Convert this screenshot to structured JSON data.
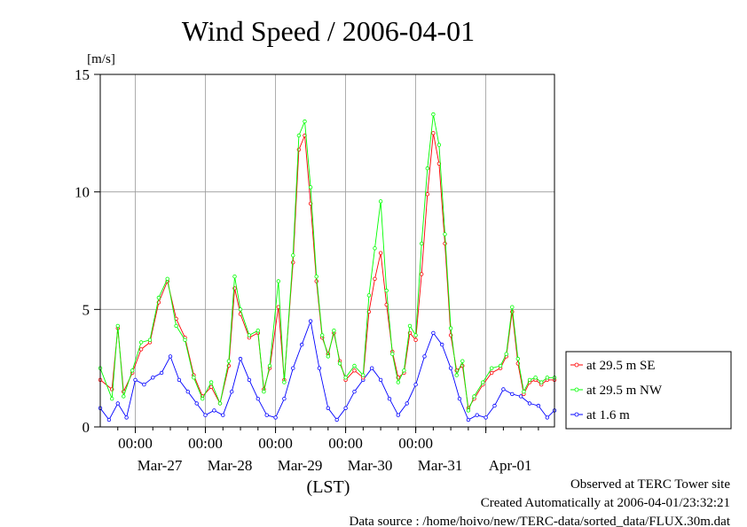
{
  "chart_data": {
    "type": "line",
    "title": "Wind Speed / 2006-04-01",
    "ylabel": "[m/s]",
    "xlabel": "(LST)",
    "ylim": [
      0,
      15
    ],
    "yticks": [
      "0",
      "5",
      "10",
      "15"
    ],
    "xlim": [
      "2006-03-26T12:00",
      "2006-04-01T23:30"
    ],
    "x_tick_time_labels": [
      "00:00",
      "00:00",
      "00:00",
      "00:00",
      "00:00"
    ],
    "x_date_labels": [
      "Mar-27",
      "Mar-28",
      "Mar-29",
      "Mar-30",
      "Mar-31",
      "Apr-01"
    ],
    "grid": true,
    "legend_position": "right",
    "series": [
      {
        "name": "at 29.5 m SE",
        "color": "#ff0000",
        "points": [
          [
            "2006-03-26T12:00",
            2.0
          ],
          [
            "2006-03-26T16:00",
            1.6
          ],
          [
            "2006-03-26T18:00",
            4.2
          ],
          [
            "2006-03-26T20:00",
            1.5
          ],
          [
            "2006-03-26T23:00",
            2.3
          ],
          [
            "2006-03-27T02:00",
            3.3
          ],
          [
            "2006-03-27T05:00",
            3.6
          ],
          [
            "2006-03-27T08:00",
            5.3
          ],
          [
            "2006-03-27T11:00",
            6.2
          ],
          [
            "2006-03-27T14:00",
            4.6
          ],
          [
            "2006-03-27T17:00",
            3.8
          ],
          [
            "2006-03-27T20:00",
            2.2
          ],
          [
            "2006-03-27T23:00",
            1.3
          ],
          [
            "2006-03-28T02:00",
            1.7
          ],
          [
            "2006-03-28T05:00",
            1.0
          ],
          [
            "2006-03-28T08:00",
            2.6
          ],
          [
            "2006-03-28T10:00",
            5.9
          ],
          [
            "2006-03-28T12:00",
            4.8
          ],
          [
            "2006-03-28T15:00",
            3.8
          ],
          [
            "2006-03-28T18:00",
            4.0
          ],
          [
            "2006-03-28T20:00",
            1.6
          ],
          [
            "2006-03-28T22:00",
            2.5
          ],
          [
            "2006-03-29T01:00",
            5.1
          ],
          [
            "2006-03-29T03:00",
            2.0
          ],
          [
            "2006-03-29T06:00",
            7.0
          ],
          [
            "2006-03-29T08:00",
            11.8
          ],
          [
            "2006-03-29T10:00",
            12.4
          ],
          [
            "2006-03-29T12:00",
            9.5
          ],
          [
            "2006-03-29T14:00",
            6.2
          ],
          [
            "2006-03-29T16:00",
            3.8
          ],
          [
            "2006-03-29T18:00",
            3.1
          ],
          [
            "2006-03-29T20:00",
            4.0
          ],
          [
            "2006-03-29T22:00",
            2.8
          ],
          [
            "2006-03-30T00:00",
            2.0
          ],
          [
            "2006-03-30T03:00",
            2.4
          ],
          [
            "2006-03-30T06:00",
            2.1
          ],
          [
            "2006-03-30T08:00",
            4.9
          ],
          [
            "2006-03-30T10:00",
            6.3
          ],
          [
            "2006-03-30T12:00",
            7.4
          ],
          [
            "2006-03-30T14:00",
            5.2
          ],
          [
            "2006-03-30T16:00",
            3.2
          ],
          [
            "2006-03-30T18:00",
            2.1
          ],
          [
            "2006-03-30T20:00",
            2.3
          ],
          [
            "2006-03-30T22:00",
            4.0
          ],
          [
            "2006-03-31T00:00",
            3.7
          ],
          [
            "2006-03-31T02:00",
            6.5
          ],
          [
            "2006-03-31T04:00",
            9.9
          ],
          [
            "2006-03-31T06:00",
            12.5
          ],
          [
            "2006-03-31T08:00",
            11.2
          ],
          [
            "2006-03-31T10:00",
            7.8
          ],
          [
            "2006-03-31T12:00",
            3.9
          ],
          [
            "2006-03-31T14:00",
            2.4
          ],
          [
            "2006-03-31T16:00",
            2.6
          ],
          [
            "2006-03-31T18:00",
            0.8
          ],
          [
            "2006-03-31T20:00",
            1.2
          ],
          [
            "2006-03-31T23:00",
            1.8
          ],
          [
            "2006-04-01T02:00",
            2.3
          ],
          [
            "2006-04-01T05:00",
            2.5
          ],
          [
            "2006-04-01T07:00",
            3.0
          ],
          [
            "2006-04-01T09:00",
            4.9
          ],
          [
            "2006-04-01T11:00",
            2.7
          ],
          [
            "2006-04-01T13:00",
            1.4
          ],
          [
            "2006-04-01T15:00",
            1.9
          ],
          [
            "2006-04-01T17:00",
            2.0
          ],
          [
            "2006-04-01T19:00",
            1.8
          ],
          [
            "2006-04-01T21:00",
            2.0
          ],
          [
            "2006-04-01T23:30",
            2.0
          ]
        ]
      },
      {
        "name": "at 29.5 m NW",
        "color": "#00ff00",
        "points": [
          [
            "2006-03-26T12:00",
            2.5
          ],
          [
            "2006-03-26T16:00",
            1.2
          ],
          [
            "2006-03-26T18:00",
            4.3
          ],
          [
            "2006-03-26T20:00",
            1.3
          ],
          [
            "2006-03-26T23:00",
            2.4
          ],
          [
            "2006-03-27T02:00",
            3.6
          ],
          [
            "2006-03-27T05:00",
            3.7
          ],
          [
            "2006-03-27T08:00",
            5.5
          ],
          [
            "2006-03-27T11:00",
            6.3
          ],
          [
            "2006-03-27T14:00",
            4.3
          ],
          [
            "2006-03-27T17:00",
            3.7
          ],
          [
            "2006-03-27T20:00",
            2.1
          ],
          [
            "2006-03-27T23:00",
            1.2
          ],
          [
            "2006-03-28T02:00",
            1.9
          ],
          [
            "2006-03-28T05:00",
            1.0
          ],
          [
            "2006-03-28T08:00",
            2.8
          ],
          [
            "2006-03-28T10:00",
            6.4
          ],
          [
            "2006-03-28T12:00",
            5.0
          ],
          [
            "2006-03-28T15:00",
            3.9
          ],
          [
            "2006-03-28T18:00",
            4.1
          ],
          [
            "2006-03-28T20:00",
            1.5
          ],
          [
            "2006-03-28T22:00",
            2.6
          ],
          [
            "2006-03-29T01:00",
            6.2
          ],
          [
            "2006-03-29T03:00",
            1.9
          ],
          [
            "2006-03-29T06:00",
            7.3
          ],
          [
            "2006-03-29T08:00",
            12.4
          ],
          [
            "2006-03-29T10:00",
            13.0
          ],
          [
            "2006-03-29T12:00",
            10.2
          ],
          [
            "2006-03-29T14:00",
            6.4
          ],
          [
            "2006-03-29T16:00",
            3.9
          ],
          [
            "2006-03-29T18:00",
            3.0
          ],
          [
            "2006-03-29T20:00",
            4.1
          ],
          [
            "2006-03-29T22:00",
            2.7
          ],
          [
            "2006-03-30T00:00",
            2.1
          ],
          [
            "2006-03-30T03:00",
            2.6
          ],
          [
            "2006-03-30T06:00",
            2.2
          ],
          [
            "2006-03-30T08:00",
            5.6
          ],
          [
            "2006-03-30T10:00",
            7.6
          ],
          [
            "2006-03-30T12:00",
            9.6
          ],
          [
            "2006-03-30T14:00",
            5.8
          ],
          [
            "2006-03-30T16:00",
            3.1
          ],
          [
            "2006-03-30T18:00",
            1.9
          ],
          [
            "2006-03-30T20:00",
            2.4
          ],
          [
            "2006-03-30T22:00",
            4.3
          ],
          [
            "2006-03-31T00:00",
            3.9
          ],
          [
            "2006-03-31T02:00",
            7.8
          ],
          [
            "2006-03-31T04:00",
            11.0
          ],
          [
            "2006-03-31T06:00",
            13.3
          ],
          [
            "2006-03-31T08:00",
            12.0
          ],
          [
            "2006-03-31T10:00",
            8.2
          ],
          [
            "2006-03-31T12:00",
            4.2
          ],
          [
            "2006-03-31T14:00",
            2.2
          ],
          [
            "2006-03-31T16:00",
            2.8
          ],
          [
            "2006-03-31T18:00",
            0.7
          ],
          [
            "2006-03-31T20:00",
            1.3
          ],
          [
            "2006-03-31T23:00",
            1.9
          ],
          [
            "2006-04-01T02:00",
            2.5
          ],
          [
            "2006-04-01T05:00",
            2.6
          ],
          [
            "2006-04-01T07:00",
            3.1
          ],
          [
            "2006-04-01T09:00",
            5.1
          ],
          [
            "2006-04-01T11:00",
            2.9
          ],
          [
            "2006-04-01T13:00",
            1.5
          ],
          [
            "2006-04-01T15:00",
            2.0
          ],
          [
            "2006-04-01T17:00",
            2.1
          ],
          [
            "2006-04-01T19:00",
            1.9
          ],
          [
            "2006-04-01T21:00",
            2.1
          ],
          [
            "2006-04-01T23:30",
            2.1
          ]
        ]
      },
      {
        "name": "at 1.6 m",
        "color": "#0000ff",
        "points": [
          [
            "2006-03-26T12:00",
            0.8
          ],
          [
            "2006-03-26T15:00",
            0.3
          ],
          [
            "2006-03-26T18:00",
            1.0
          ],
          [
            "2006-03-26T21:00",
            0.4
          ],
          [
            "2006-03-27T00:00",
            2.0
          ],
          [
            "2006-03-27T03:00",
            1.8
          ],
          [
            "2006-03-27T06:00",
            2.1
          ],
          [
            "2006-03-27T09:00",
            2.3
          ],
          [
            "2006-03-27T12:00",
            3.0
          ],
          [
            "2006-03-27T15:00",
            2.0
          ],
          [
            "2006-03-27T18:00",
            1.5
          ],
          [
            "2006-03-27T21:00",
            1.0
          ],
          [
            "2006-03-28T00:00",
            0.5
          ],
          [
            "2006-03-28T03:00",
            0.7
          ],
          [
            "2006-03-28T06:00",
            0.5
          ],
          [
            "2006-03-28T09:00",
            1.5
          ],
          [
            "2006-03-28T12:00",
            2.9
          ],
          [
            "2006-03-28T15:00",
            2.0
          ],
          [
            "2006-03-28T18:00",
            1.2
          ],
          [
            "2006-03-28T21:00",
            0.5
          ],
          [
            "2006-03-29T00:00",
            0.4
          ],
          [
            "2006-03-29T03:00",
            1.2
          ],
          [
            "2006-03-29T06:00",
            2.5
          ],
          [
            "2006-03-29T09:00",
            3.5
          ],
          [
            "2006-03-29T12:00",
            4.5
          ],
          [
            "2006-03-29T15:00",
            2.5
          ],
          [
            "2006-03-29T18:00",
            0.8
          ],
          [
            "2006-03-29T21:00",
            0.3
          ],
          [
            "2006-03-30T00:00",
            0.8
          ],
          [
            "2006-03-30T03:00",
            1.5
          ],
          [
            "2006-03-30T06:00",
            2.0
          ],
          [
            "2006-03-30T09:00",
            2.5
          ],
          [
            "2006-03-30T12:00",
            2.0
          ],
          [
            "2006-03-30T15:00",
            1.2
          ],
          [
            "2006-03-30T18:00",
            0.5
          ],
          [
            "2006-03-30T21:00",
            1.0
          ],
          [
            "2006-03-31T00:00",
            1.8
          ],
          [
            "2006-03-31T03:00",
            3.0
          ],
          [
            "2006-03-31T06:00",
            4.0
          ],
          [
            "2006-03-31T09:00",
            3.5
          ],
          [
            "2006-03-31T12:00",
            2.5
          ],
          [
            "2006-03-31T15:00",
            1.2
          ],
          [
            "2006-03-31T18:00",
            0.3
          ],
          [
            "2006-03-31T21:00",
            0.5
          ],
          [
            "2006-04-01T00:00",
            0.4
          ],
          [
            "2006-04-01T03:00",
            0.9
          ],
          [
            "2006-04-01T06:00",
            1.6
          ],
          [
            "2006-04-01T09:00",
            1.4
          ],
          [
            "2006-04-01T12:00",
            1.3
          ],
          [
            "2006-04-01T15:00",
            1.0
          ],
          [
            "2006-04-01T18:00",
            0.9
          ],
          [
            "2006-04-01T21:00",
            0.4
          ],
          [
            "2006-04-01T23:30",
            0.7
          ]
        ]
      }
    ]
  },
  "footer": {
    "observed": "Observed at TERC Tower site",
    "created": "Created Automatically at 2006-04-01/23:32:21",
    "source": "Data source : /home/hoivo/new/TERC-data/sorted_data/FLUX.30m.dat"
  }
}
